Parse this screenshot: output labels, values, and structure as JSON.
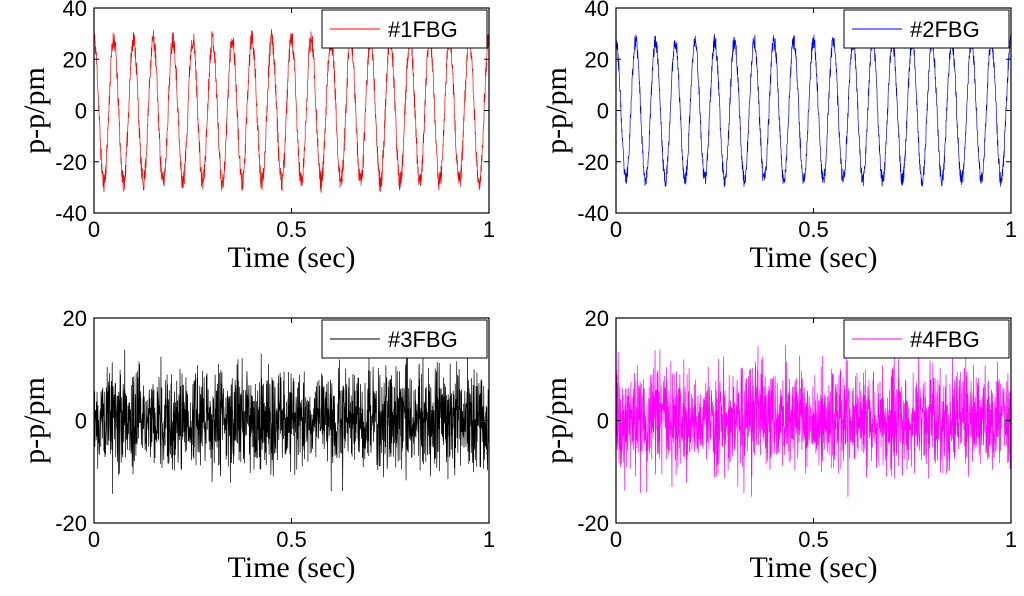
{
  "chart_data": [
    {
      "type": "line",
      "xlabel": "Time (sec)",
      "ylabel": "p-p/pm",
      "xlim": [
        0,
        1
      ],
      "ylim": [
        -40,
        40
      ],
      "xticks": [
        "0",
        "0.5",
        "1"
      ],
      "yticks": [
        "-40",
        "-20",
        "0",
        "20",
        "40"
      ],
      "legend": "#1FBG",
      "legend_position": "top-right",
      "series": [
        {
          "name": "#1FBG",
          "color": "#ff0000",
          "signal": "sine",
          "frequency_hz": 20,
          "amplitude": 28,
          "noise": 4,
          "seed": 11,
          "start_value": 30
        }
      ]
    },
    {
      "type": "line",
      "xlabel": "Time (sec)",
      "ylabel": "p-p/pm",
      "xlim": [
        0,
        1
      ],
      "ylim": [
        -40,
        40
      ],
      "xticks": [
        "0",
        "0.5",
        "1"
      ],
      "yticks": [
        "-40",
        "-20",
        "0",
        "20",
        "40"
      ],
      "legend": "#2FBG",
      "legend_position": "top-right",
      "series": [
        {
          "name": "#2FBG",
          "color": "#0000ff",
          "signal": "sine",
          "frequency_hz": 20,
          "amplitude": 27,
          "noise": 3,
          "seed": 23,
          "start_value": 28
        }
      ]
    },
    {
      "type": "line",
      "xlabel": "Time (sec)",
      "ylabel": "p-p/pm",
      "xlim": [
        0,
        1
      ],
      "ylim": [
        -20,
        20
      ],
      "xticks": [
        "0",
        "0.5",
        "1"
      ],
      "yticks": [
        "-20",
        "0",
        "20"
      ],
      "legend": "#3FBG",
      "legend_position": "top-right",
      "series": [
        {
          "name": "#3FBG",
          "color": "#000000",
          "signal": "noise",
          "amplitude": 0,
          "noise": 5,
          "spikes": [
            -14,
            13
          ],
          "seed": 37
        }
      ]
    },
    {
      "type": "line",
      "xlabel": "Time (sec)",
      "ylabel": "p-p/pm",
      "xlim": [
        0,
        1
      ],
      "ylim": [
        -20,
        20
      ],
      "xticks": [
        "0",
        "0.5",
        "1"
      ],
      "yticks": [
        "-20",
        "0",
        "20"
      ],
      "legend": "#4FBG",
      "legend_position": "top-right",
      "series": [
        {
          "name": "#4FBG",
          "color": "#ff00ff",
          "signal": "noise",
          "amplitude": 0,
          "noise": 5,
          "spikes": [
            -15,
            14
          ],
          "seed": 53
        }
      ]
    }
  ]
}
